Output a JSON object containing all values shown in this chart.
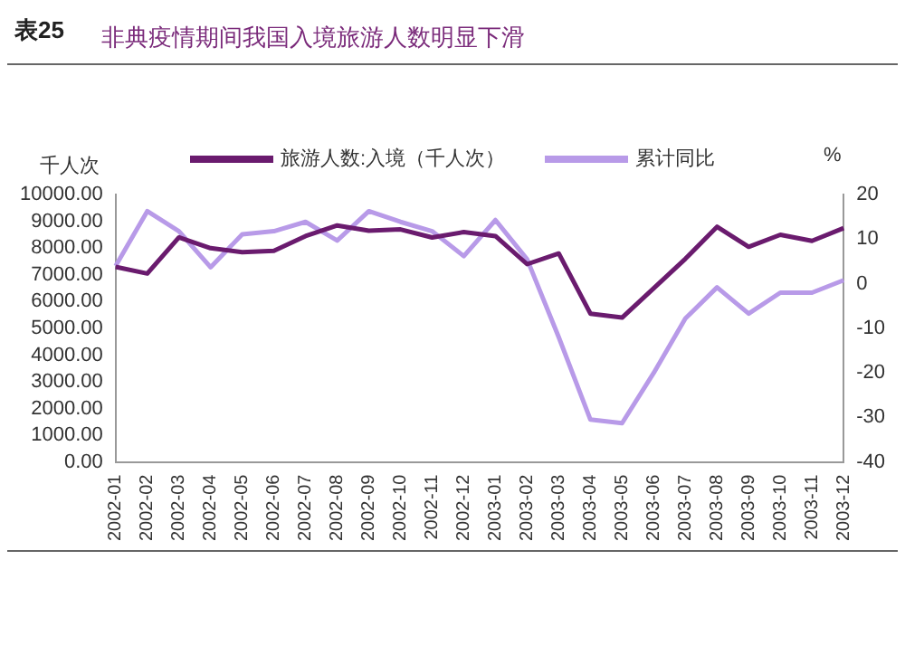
{
  "chart_data": {
    "type": "line",
    "title": "非典疫情期间我国入境旅游人数明显下滑",
    "annotations": [
      "表25"
    ],
    "ylabel": "千人次",
    "y2label": "%",
    "categories": [
      "2002-01",
      "2002-02",
      "2002-03",
      "2002-04",
      "2002-05",
      "2002-06",
      "2002-07",
      "2002-08",
      "2002-09",
      "2002-10",
      "2002-11",
      "2002-12",
      "2003-01",
      "2003-02",
      "2003-03",
      "2003-04",
      "2003-05",
      "2003-06",
      "2003-07",
      "2003-08",
      "2003-09",
      "2003-10",
      "2003-11",
      "2003-12"
    ],
    "series": [
      {
        "name": "旅游人数:入境（千人次）",
        "color": "#6a1b6e",
        "values": [
          7300,
          7050,
          8400,
          8000,
          7850,
          7900,
          8450,
          8850,
          8650,
          8700,
          8400,
          8600,
          8450,
          7400,
          7800,
          5550,
          5400,
          6500,
          7600,
          8800,
          8050,
          8500,
          8270,
          8750
        ]
      },
      {
        "name": "累计同比",
        "color": "#b89ae8",
        "axis": "y2",
        "values": [
          4,
          16.3,
          11.8,
          3.7,
          11.1,
          11.8,
          13.9,
          9.7,
          16.3,
          13.9,
          11.8,
          6.2,
          14.3,
          5.5,
          -12,
          -30.5,
          -31.3,
          -20,
          -7.8,
          -0.8,
          -6.7,
          -2,
          -2,
          0.8
        ]
      }
    ],
    "ylim": [
      0,
      10000
    ],
    "yticks": [
      {
        "value": 0,
        "label": "0.00"
      },
      {
        "value": 1000,
        "label": "1000.00"
      },
      {
        "value": 2000,
        "label": "2000.00"
      },
      {
        "value": 3000,
        "label": "3000.00"
      },
      {
        "value": 4000,
        "label": "4000.00"
      },
      {
        "value": 5000,
        "label": "5000.00"
      },
      {
        "value": 6000,
        "label": "6000.00"
      },
      {
        "value": 7000,
        "label": "7000.00"
      },
      {
        "value": 8000,
        "label": "8000.00"
      },
      {
        "value": 9000,
        "label": "9000.00"
      },
      {
        "value": 10000,
        "label": "10000.00"
      }
    ],
    "y2lim": [
      -40,
      20
    ],
    "y2ticks": [
      -40,
      -30,
      -20,
      -10,
      0,
      10,
      20
    ],
    "legend": "top",
    "grid": false,
    "marker": "none",
    "line_style": "solid"
  }
}
